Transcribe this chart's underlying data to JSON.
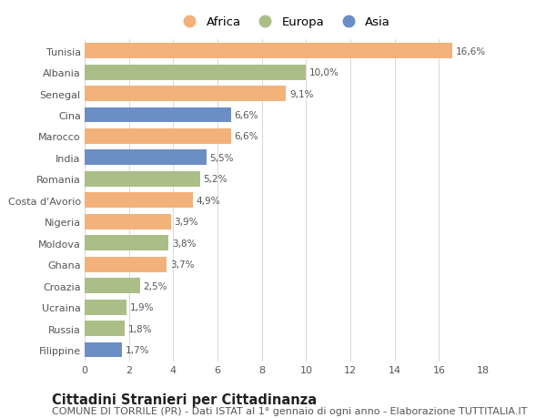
{
  "countries": [
    "Tunisia",
    "Albania",
    "Senegal",
    "Cina",
    "Marocco",
    "India",
    "Romania",
    "Costa d'Avorio",
    "Nigeria",
    "Moldova",
    "Ghana",
    "Croazia",
    "Ucraina",
    "Russia",
    "Filippine"
  ],
  "values": [
    16.6,
    10.0,
    9.1,
    6.6,
    6.6,
    5.5,
    5.2,
    4.9,
    3.9,
    3.8,
    3.7,
    2.5,
    1.9,
    1.8,
    1.7
  ],
  "labels": [
    "16,6%",
    "10,0%",
    "9,1%",
    "6,6%",
    "6,6%",
    "5,5%",
    "5,2%",
    "4,9%",
    "3,9%",
    "3,8%",
    "3,7%",
    "2,5%",
    "1,9%",
    "1,8%",
    "1,7%"
  ],
  "regions": [
    "Africa",
    "Europa",
    "Africa",
    "Asia",
    "Africa",
    "Asia",
    "Europa",
    "Africa",
    "Africa",
    "Europa",
    "Africa",
    "Europa",
    "Europa",
    "Europa",
    "Asia"
  ],
  "colors": {
    "Africa": "#F2B27A",
    "Europa": "#ABBE88",
    "Asia": "#6B8EC4"
  },
  "legend_labels": [
    "Africa",
    "Europa",
    "Asia"
  ],
  "legend_colors": [
    "#F2B27A",
    "#ABBE88",
    "#6B8EC4"
  ],
  "title": "Cittadini Stranieri per Cittadinanza",
  "subtitle": "COMUNE DI TORRILE (PR) - Dati ISTAT al 1° gennaio di ogni anno - Elaborazione TUTTITALIA.IT",
  "xlim": [
    0,
    18
  ],
  "xticks": [
    0,
    2,
    4,
    6,
    8,
    10,
    12,
    14,
    16,
    18
  ],
  "background_color": "#ffffff",
  "bar_height": 0.72,
  "grid_color": "#d8d8d8",
  "title_fontsize": 10.5,
  "subtitle_fontsize": 8,
  "label_fontsize": 7.5,
  "tick_fontsize": 8,
  "legend_fontsize": 9.5
}
